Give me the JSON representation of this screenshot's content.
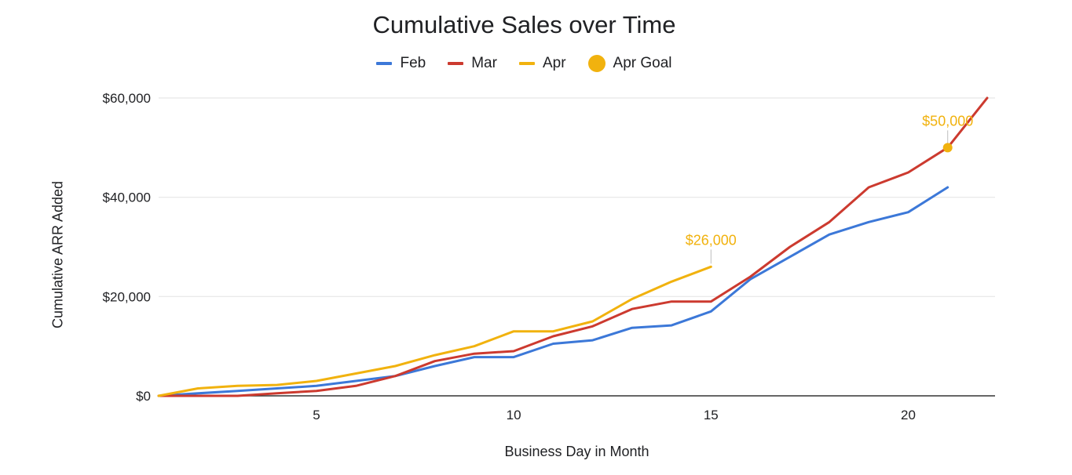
{
  "chart_data": {
    "type": "line",
    "title": "Cumulative Sales over Time",
    "xlabel": "Business Day in Month",
    "ylabel": "Cumulative ARR Added",
    "xlim": [
      1,
      22.2
    ],
    "ylim": [
      0,
      60000
    ],
    "x_ticks": [
      5,
      10,
      15,
      20
    ],
    "y_ticks": [
      0,
      20000,
      40000,
      60000
    ],
    "y_tick_labels": [
      "$0",
      "$20,000",
      "$40,000",
      "$60,000"
    ],
    "grid": "horizontal",
    "legend_position": "top",
    "series": [
      {
        "name": "Feb",
        "color": "#3c78d8",
        "x": [
          1,
          2,
          3,
          4,
          5,
          6,
          7,
          8,
          9,
          10,
          11,
          12,
          13,
          14,
          15,
          16,
          17,
          18,
          19,
          20,
          21
        ],
        "values": [
          0,
          500,
          1000,
          1500,
          2000,
          3000,
          4000,
          6000,
          7800,
          7800,
          10500,
          11200,
          13700,
          14200,
          17000,
          23500,
          28000,
          32500,
          35000,
          37000,
          42000
        ]
      },
      {
        "name": "Mar",
        "color": "#cc3a2f",
        "x": [
          1,
          2,
          3,
          4,
          5,
          6,
          7,
          8,
          9,
          10,
          11,
          12,
          13,
          14,
          15,
          16,
          17,
          18,
          19,
          20,
          21,
          22
        ],
        "values": [
          0,
          0,
          0,
          500,
          1000,
          2000,
          4000,
          7000,
          8500,
          9000,
          12000,
          14000,
          17500,
          19000,
          19000,
          24000,
          30000,
          35000,
          42000,
          45000,
          50000,
          60000
        ]
      },
      {
        "name": "Apr",
        "color": "#f1b20e",
        "x": [
          1,
          2,
          3,
          4,
          5,
          6,
          7,
          8,
          9,
          10,
          11,
          12,
          13,
          14,
          15
        ],
        "values": [
          0,
          1500,
          2000,
          2200,
          3000,
          4500,
          6000,
          8200,
          10000,
          13000,
          13000,
          15000,
          19500,
          23000,
          26000
        ]
      },
      {
        "name": "Apr Goal",
        "color": "#f1b20e",
        "type": "point",
        "x": [
          21
        ],
        "values": [
          50000
        ]
      }
    ],
    "annotations": [
      {
        "text": "$26,000",
        "x": 15,
        "y": 26000,
        "color": "#f1b20e"
      },
      {
        "text": "$50,000",
        "x": 21,
        "y": 50000,
        "color": "#f1b20e"
      }
    ]
  }
}
